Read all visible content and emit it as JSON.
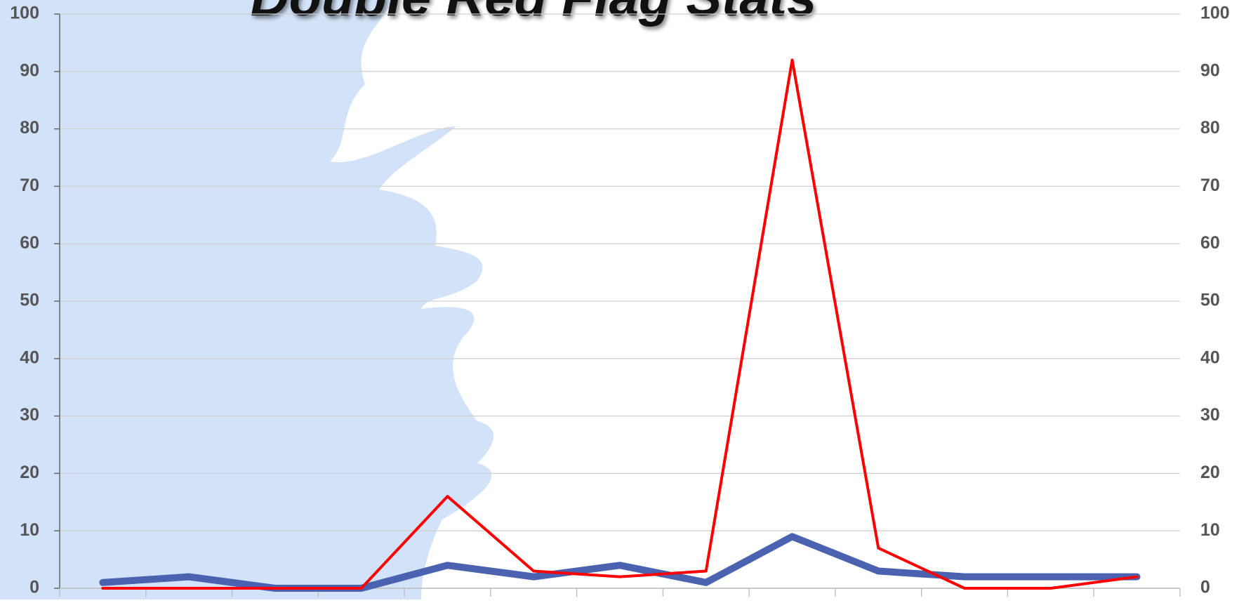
{
  "chart_data": {
    "type": "line",
    "title": "Double Red Flag Stats",
    "categories": [
      null,
      null,
      null,
      null,
      null,
      null,
      null,
      null,
      null,
      null,
      null,
      null,
      null
    ],
    "series": [
      {
        "color": "#4a62b0",
        "values": [
          1,
          2,
          0,
          0,
          4,
          2,
          4,
          1,
          9,
          3,
          2,
          2,
          2
        ]
      },
      {
        "color": "#ff0000",
        "axis": "y2",
        "values": [
          0,
          0,
          0,
          0,
          16,
          3,
          2,
          3,
          92,
          7,
          0,
          0,
          2
        ]
      }
    ],
    "ylim": [
      0,
      100
    ],
    "yticks": [
      0,
      10,
      20,
      30,
      40,
      50,
      60,
      70,
      80,
      90,
      100
    ],
    "y2lim": [
      0,
      100
    ],
    "y2ticks": [
      0,
      10,
      20,
      30,
      40,
      50,
      60,
      70,
      80,
      90,
      100
    ],
    "grid": true
  }
}
